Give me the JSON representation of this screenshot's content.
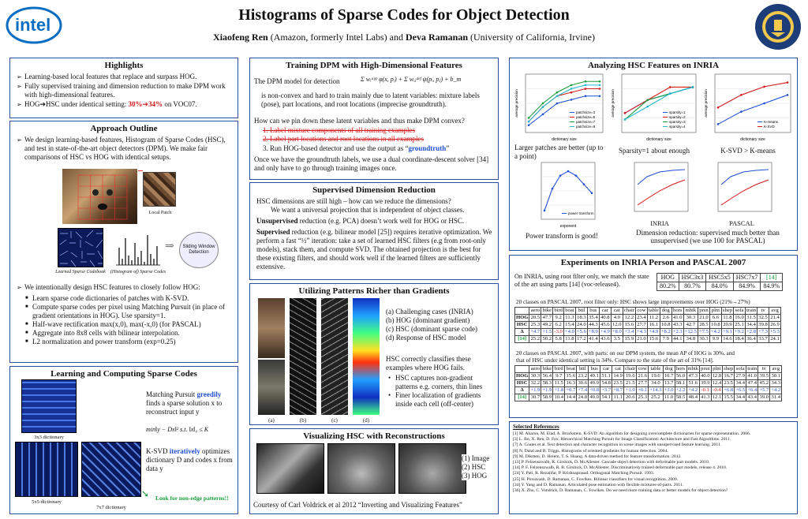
{
  "header": {
    "title": "Histograms of Sparse Codes for Object Detection",
    "author1": "Xiaofeng Ren",
    "affil1": " (Amazon, formerly Intel Labs) and ",
    "author2": "Deva Ramanan",
    "affil2": " (University of California, Irvine)",
    "logo_text": "intel",
    "seal_text": "UNIVERSITY OF CALIFORNIA"
  },
  "highlights": {
    "title": "Highlights",
    "items": [
      "Learning-based local features that replace and surpass HOG.",
      "Fully supervised training and dimension reduction to make DPM work with high-dimensional features."
    ],
    "item3_pre": "HOG",
    "item3_mid": "HSC under identical setting:  ",
    "item3_a": "30%",
    "item3_b": "34%",
    "item3_post": " on VOC07."
  },
  "approach": {
    "title": "Approach Outline",
    "intro": "We design learning-based features, Histogram of Sparse Codes (HSC), and test in state-of-the-art object detectors (DPM). We make fair comparisons of HSC vs HOG with identical setups.",
    "local_patch": "Local Patch",
    "codebook": "Learned Sparse Codebook",
    "histogram": "(Histogram of) Sparse Codes",
    "sliding": "Sliding Window Detection",
    "follow": "We intentionally design HSC features to closely follow HOG:",
    "bullets": [
      "Learn sparse code dictionaries of patches with K-SVD.",
      "Compute sparse codes per pixel using Matching Pursuit (in place of gradient orientations in HOG). Use sparsity=1.",
      "Half-wave rectification max(x,0), max(-x,0) (for PASCAL)",
      "Aggregate into 8x8 cells with bilinear interpolation.",
      "L2 normalization and power transform (exp=0.25)"
    ]
  },
  "learning": {
    "title": "Learning and Computing Sparse Codes",
    "mp_pre": "Matching Pursuit ",
    "mp_greedily": "greedily",
    "mp_post": "finds a sparse solution x to reconstruct input y",
    "ksvd_pre": "K-SVD ",
    "ksvd_iter": "iteratively",
    "ksvd_post": "optimizes dictionary D and codes x from data y",
    "d3": "3x3 dictionary",
    "d5": "5x5 dictionary",
    "d7": "7x7 dictionary",
    "look": "Look for non-edge patterns!!",
    "formula": "min‖y − Dx‖² s.t. ‖x‖₀ ≤ K"
  },
  "training": {
    "title": "Training DPM with High-Dimensional Features",
    "p1": "The DPM model for detection",
    "formula": "Σ wᵢᵃᵖᵖ φ(x, pᵢ) + Σ wᵢⱼᵈᵉᶠ ψ(pᵢ, pⱼ) + b_m",
    "p2": "is non-convex and hard to train mainly due to latent variables: mixture labels (pose), part locations, and root locations (imprecise groundtruth).",
    "q": "How can we pin down these latent variables and thus make DPM convex?",
    "s1": "1. Label mixture components of all training examples",
    "s2": "2. Label part locations and root locations in all examples",
    "s3_pre": "3.  Run HOG-based detector and use the output as “",
    "s3_gt": "groundtruth",
    "s3_post": "”",
    "p3": "Once we have the groundtruth labels, we use a dual coordinate-descent solver [34] and only have to go through training images once."
  },
  "supervised": {
    "title": "Supervised Dimension Reduction",
    "l1": "HSC dimensions are still high – how can we reduce the dimensions?",
    "l2": "We want a universal projection that is independent of object classes.",
    "unsup_b": "Unsupervised",
    "unsup": " reduction (e.g. PCA) doesn’t work well for HOG or HSC.",
    "sup_b": "Supervised",
    "sup": " reduction (e.g. bilinear model [25]) requires iterative optimization. We perform a fast “½” iteration: take a set of learned HSC filters (e.g from root-only models), stack them, and compute SVD. The obtained projection is the best for these existing filters, and should work well if the learned filters are sufficiently extensive."
  },
  "patterns": {
    "title": "Utilizing Patterns Richer than Gradients",
    "items": [
      "(a) Challenging cases (INRIA)",
      "(b) HOG (dominant gradient)",
      "(c) HSC (dominant sparse code)",
      "(d) Response of HSC model"
    ],
    "correct": "HSC correctly classifies these examples where HOG fails.",
    "bullets": [
      "HSC captures non-gradient patterns e.g. corners, thin lines",
      "Finer localization of gradients inside each cell (off-center)"
    ],
    "labels": [
      "(a)",
      "(b)",
      "(c)",
      "(d)"
    ]
  },
  "visualizing": {
    "title": "Visualizing HSC with Reconstructions",
    "items": [
      "(1)  Image",
      "(2)  HSC",
      "(3)  HOG"
    ],
    "courtesy": "Courtesy of Carl Voldrick et al 2012 “Inverting and Visualizing Features”"
  },
  "analyzing": {
    "title": "Analyzing  HSC Features on INRIA",
    "c1": "Larger patches are better (up to a point)",
    "c2": "Sparsity=1 about enough",
    "c3": "K-SVD > K-means",
    "c4": "Power transform is good!",
    "inria": "INRIA",
    "pascal": "PASCAL",
    "c5": "Dimension reduction: supervised much better than unsupervised (we use 100 for PASCAL)"
  },
  "experiments": {
    "title": "Experiments on INRIA Person and PASCAL 2007",
    "inria_text": "On INRIA, using root filter only, we match the state of the art using parts [14] (voc-release4).",
    "inria_head": [
      "HOG",
      "HSC3x3",
      "HSC5x5",
      "HSC7x7",
      "[14]"
    ],
    "inria_vals": [
      "80.2%",
      "80.7%",
      "84.0%",
      "84.9%",
      "84.9%"
    ],
    "pascal_root_caption": "20 classes on PASCAL 2007, root filter only: HSC shows large improvements over HOG (21%→27%)",
    "pascal_part_caption_1": "20 classes on PASCAL 2007, with parts: on our DPM system, the mean AP of HOG is 30%, and",
    "pascal_part_caption_2": "that of HSC under identical setting is 34%. Compare to the state of the art of 31% [14].",
    "cols": [
      "",
      "aero",
      "bike",
      "bird",
      "boat",
      "bttl",
      "bus",
      "car",
      "cat",
      "chair",
      "cow",
      "table",
      "dog",
      "hors",
      "mbik",
      "prsn",
      "plnt",
      "shep",
      "sofa",
      "train",
      "tv",
      "avg"
    ],
    "root_rows": [
      [
        "HOG",
        "20.5",
        "47.7",
        "9.2",
        "11.3",
        "18.3",
        "35.4",
        "40.8",
        "4.0",
        "12.2",
        "23.4",
        "11.2",
        "2.6",
        "41.0",
        "30.3",
        "21.0",
        "6.6",
        "11.8",
        "16.0",
        "31.5",
        "32.5",
        "21.4"
      ],
      [
        "HSC",
        "25.3",
        "49.2",
        "6.2",
        "15.4",
        "24.0",
        "44.3",
        "45.6",
        "12.0",
        "15.6",
        "27.7",
        "16.1",
        "10.8",
        "43.3",
        "42.7",
        "28.5",
        "10.8",
        "20.9",
        "25.1",
        "34.4",
        "39.8",
        "26.9"
      ],
      [
        "Δ",
        "+4.7",
        "+1.5",
        "-3.0",
        "+4.0",
        "+5.6",
        "+8.9",
        "+4.9",
        "+8.0",
        "+3.4",
        "+4.3",
        "+4.9",
        "+8.2",
        "+2.3",
        "+12.5",
        "+7.5",
        "+4.2",
        "+9.1",
        "+9.2",
        "+2.8",
        "+7.3",
        "+5.5"
      ],
      [
        "[14]",
        "25.2",
        "50.2",
        "5.8",
        "11.8",
        "17.2",
        "41.4",
        "43.6",
        "3.5",
        "15.9",
        "21.0",
        "15.6",
        "7.9",
        "44.1",
        "34.8",
        "30.3",
        "9.9",
        "14.6",
        "18.4",
        "36.4",
        "33.7",
        "24.1"
      ]
    ],
    "part_rows": [
      [
        "HOG",
        "30.3",
        "56.4",
        "9.7",
        "15.6",
        "23.2",
        "49.1",
        "51.1",
        "14.9",
        "19.6",
        "21.6",
        "19.6",
        "10.7",
        "56.0",
        "47.3",
        "40.0",
        "12.8",
        "16.7",
        "27.9",
        "41.0",
        "39.5",
        "30.1"
      ],
      [
        "HSC",
        "32.2",
        "58.3",
        "11.5",
        "16.3",
        "30.6",
        "49.9",
        "54.8",
        "23.5",
        "21.5",
        "27.7",
        "34.0",
        "13.7",
        "58.1",
        "51.6",
        "39.9",
        "12.4",
        "23.5",
        "34.4",
        "47.4",
        "45.2",
        "34.3"
      ],
      [
        "Δ",
        "+1.9",
        "+1.9",
        "+1.8",
        "+0.7",
        "+7.4",
        "+0.8",
        "+3.7",
        "+8.7",
        "+1.9",
        "+6.1",
        "+14.3",
        "+3.0",
        "+2.2",
        "+4.2",
        "-0.1",
        "-0.4",
        "+6.8",
        "+6.5",
        "+6.4",
        "+5.7",
        "+4.2"
      ],
      [
        "[14]",
        "30.7",
        "58.9",
        "10.4",
        "14.4",
        "24.8",
        "49.0",
        "54.1",
        "11.1",
        "20.6",
        "25.3",
        "25.2",
        "11.0",
        "58.5",
        "48.4",
        "41.3",
        "12.1",
        "15.5",
        "34.4",
        "43.4",
        "39.0",
        "31.4"
      ]
    ]
  },
  "references": {
    "title": "Selected References",
    "items": [
      "[1] M. Aharon, M. Elad, A. Bruckstein. K-SVD: An algorithm for designing overcomplete dictionaries for sparse representation. 2006.",
      "[3] L. Bo, X. Ren, D. Fox. Hierarchical Matching Pursuit for Image Classification: Architecture and Fast Algorithms. 2011.",
      "[7] A. Coates et al. Text detection and character recognition in scene images with unsupervised feature learning. 2011.",
      "[8] N. Dalal and B. Triggs. Histograms of oriented gradients for human detection. 2004.",
      "[9] M. Dikmen, D. Hoiem, T. S. Huang. A data-driven method for feature transformation. 2012.",
      "[13] P. Felzenszwalb, R. Girshick, D. McAllester. Cascade object detection with deformable part models. 2010.",
      "[14] P. F. Felzenszwalb, R. B. Girshick, D. McAllester. Discriminatively trained deformable part models, release 4. 2010.",
      "[24] Y. Pati, R. Rezaiifar, P. Krishnaprasad. Orthogonal Matching Pursuit. 1993.",
      "[25] H. Pirsiavash, D. Ramanan, C. Fowlkes. Bilinear classifiers for visual recognition. 2009.",
      "[34] Y. Yang and D. Ramanan. Articulated pose estimation with flexible mixtures-of-parts. 2011.",
      "[36] X. Zhu, C. Vondrick, D. Ramanan, C. Fowlkes. Do we need more training data or better models for object detection?"
    ]
  },
  "colors": {
    "border": "#2a4fa0",
    "accent": "#1f4fd1",
    "red": "#d41a1a",
    "green": "#1a9e3a"
  },
  "chart_data": [
    {
      "type": "line",
      "ylabel": "average precision",
      "xlabel": "dictionary size",
      "series": [
        {
          "name": "patchsize=3",
          "values": [
            0.72,
            0.75,
            0.78,
            0.79,
            0.8,
            0.8
          ]
        },
        {
          "name": "patchsize=5",
          "values": [
            0.73,
            0.77,
            0.8,
            0.81,
            0.82,
            0.82
          ]
        },
        {
          "name": "patchsize=7",
          "values": [
            0.74,
            0.78,
            0.81,
            0.83,
            0.84,
            0.84
          ]
        },
        {
          "name": "patchsize=9",
          "values": [
            0.73,
            0.77,
            0.8,
            0.82,
            0.83,
            0.83
          ]
        }
      ]
    },
    {
      "type": "line",
      "ylabel": "average precision",
      "xlabel": "dictionary size",
      "series": [
        {
          "name": "sparsity=1",
          "values": [
            0.77,
            0.79,
            0.8,
            0.81
          ]
        },
        {
          "name": "sparsity=2",
          "values": [
            0.77,
            0.79,
            0.81,
            0.81
          ]
        },
        {
          "name": "sparsity=3",
          "values": [
            0.76,
            0.79,
            0.8,
            0.81
          ]
        },
        {
          "name": "sparsity=4",
          "values": [
            0.76,
            0.78,
            0.8,
            0.81
          ]
        }
      ]
    },
    {
      "type": "line",
      "ylabel": "average precision",
      "xlabel": "dictionary size",
      "series": [
        {
          "name": "K-means",
          "values": [
            0.72,
            0.75,
            0.77,
            0.79
          ]
        },
        {
          "name": "K-SVD",
          "values": [
            0.76,
            0.79,
            0.81,
            0.82
          ]
        }
      ]
    },
    {
      "type": "line",
      "xlabel": "exponent",
      "series": [
        {
          "name": "power transform",
          "values": [
            0.72,
            0.77,
            0.8,
            0.81,
            0.8,
            0.78,
            0.76
          ]
        }
      ]
    }
  ]
}
